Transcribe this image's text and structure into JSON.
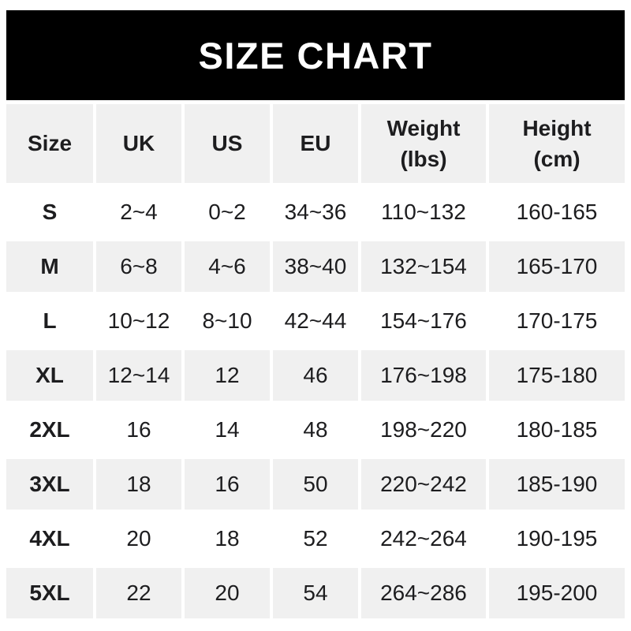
{
  "banner": {
    "title": "SIZE CHART",
    "bg_color": "#000000",
    "text_color": "#ffffff"
  },
  "chart_data": {
    "type": "table",
    "title": "SIZE CHART",
    "columns": [
      "Size",
      "UK",
      "US",
      "EU",
      "Weight\n(lbs)",
      "Height\n(cm)"
    ],
    "rows": [
      {
        "size": "S",
        "values": [
          "2~4",
          "0~2",
          "34~36",
          "110~132",
          "160-165"
        ]
      },
      {
        "size": "M",
        "values": [
          "6~8",
          "4~6",
          "38~40",
          "132~154",
          "165-170"
        ]
      },
      {
        "size": "L",
        "values": [
          "10~12",
          "8~10",
          "42~44",
          "154~176",
          "170-175"
        ]
      },
      {
        "size": "XL",
        "values": [
          "12~14",
          "12",
          "46",
          "176~198",
          "175-180"
        ]
      },
      {
        "size": "2XL",
        "values": [
          "16",
          "14",
          "48",
          "198~220",
          "180-185"
        ]
      },
      {
        "size": "3XL",
        "values": [
          "18",
          "16",
          "50",
          "220~242",
          "185-190"
        ]
      },
      {
        "size": "4XL",
        "values": [
          "20",
          "18",
          "52",
          "242~264",
          "190-195"
        ]
      },
      {
        "size": "5XL",
        "values": [
          "22",
          "20",
          "54",
          "264~286",
          "195-200"
        ]
      }
    ],
    "layout": {
      "alt_row_color": "#f0f0f0",
      "row_color": "#ffffff",
      "text_color": "#1d1d1f",
      "grid": "off"
    }
  }
}
